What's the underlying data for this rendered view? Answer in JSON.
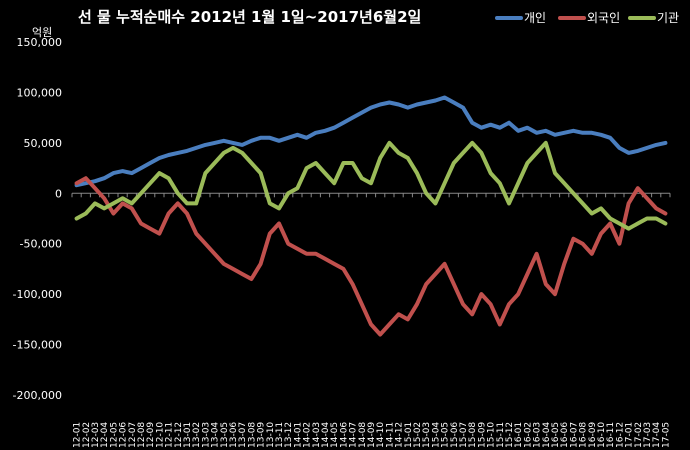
{
  "chart_data": {
    "type": "line",
    "title": "선 물  누적순매수  2012년 1월 1일~2017년6월2일",
    "unit_label": "억원",
    "ylim": [
      -200000,
      150000
    ],
    "y_ticks": [
      "150,000",
      "100,000",
      "50,000",
      "0",
      "-50,000",
      "-100,000",
      "-150,000",
      "-200,000"
    ],
    "y_tick_values": [
      150000,
      100000,
      50000,
      0,
      -50000,
      -100000,
      -150000,
      -200000
    ],
    "x_tick_labels": [
      "12-01",
      "12-02",
      "12-03",
      "12-04",
      "12-05",
      "12-06",
      "12-07",
      "12-08",
      "12-09",
      "12-10",
      "12-11",
      "12-12",
      "13-01",
      "13-02",
      "13-03",
      "13-04",
      "13-05",
      "13-06",
      "13-07",
      "13-08",
      "13-09",
      "13-10",
      "13-11",
      "13-12",
      "14-01",
      "14-02",
      "14-03",
      "14-04",
      "14-05",
      "14-06",
      "14-07",
      "14-08",
      "14-09",
      "14-10",
      "14-11",
      "14-12",
      "15-01",
      "15-02",
      "15-03",
      "15-04",
      "15-05",
      "15-06",
      "15-07",
      "15-08",
      "15-09",
      "15-10",
      "15-11",
      "15-12",
      "16-01",
      "16-02",
      "16-03",
      "16-04",
      "16-05",
      "16-06",
      "16-07",
      "16-08",
      "16-09",
      "16-10",
      "16-11",
      "16-12",
      "17-01",
      "17-02",
      "17-03",
      "17-04",
      "17-05"
    ],
    "legend_placement": "top-right",
    "grid": false,
    "series": [
      {
        "name": "개인",
        "color": "#4a7ebf",
        "values": [
          8000,
          10000,
          12000,
          15000,
          20000,
          22000,
          20000,
          25000,
          30000,
          35000,
          38000,
          40000,
          42000,
          45000,
          48000,
          50000,
          52000,
          50000,
          48000,
          52000,
          55000,
          55000,
          52000,
          55000,
          58000,
          55000,
          60000,
          62000,
          65000,
          70000,
          75000,
          80000,
          85000,
          88000,
          90000,
          88000,
          85000,
          88000,
          90000,
          92000,
          95000,
          90000,
          85000,
          70000,
          65000,
          68000,
          65000,
          70000,
          62000,
          65000,
          60000,
          62000,
          58000,
          60000,
          62000,
          60000,
          60000,
          58000,
          55000,
          45000,
          40000,
          42000,
          45000,
          48000,
          50000
        ]
      },
      {
        "name": "외국인",
        "color": "#c0504d",
        "values": [
          10000,
          15000,
          5000,
          -5000,
          -20000,
          -10000,
          -15000,
          -30000,
          -35000,
          -40000,
          -20000,
          -10000,
          -20000,
          -40000,
          -50000,
          -60000,
          -70000,
          -75000,
          -80000,
          -85000,
          -70000,
          -40000,
          -30000,
          -50000,
          -55000,
          -60000,
          -60000,
          -65000,
          -70000,
          -75000,
          -90000,
          -110000,
          -130000,
          -140000,
          -130000,
          -120000,
          -125000,
          -110000,
          -90000,
          -80000,
          -70000,
          -90000,
          -110000,
          -120000,
          -100000,
          -110000,
          -130000,
          -110000,
          -100000,
          -80000,
          -60000,
          -90000,
          -100000,
          -70000,
          -45000,
          -50000,
          -60000,
          -40000,
          -30000,
          -50000,
          -10000,
          5000,
          -5000,
          -15000,
          -20000
        ]
      },
      {
        "name": "기관",
        "color": "#9bbb59",
        "values": [
          -25000,
          -20000,
          -10000,
          -15000,
          -10000,
          -5000,
          -10000,
          0,
          10000,
          20000,
          15000,
          0,
          -10000,
          -10000,
          20000,
          30000,
          40000,
          45000,
          40000,
          30000,
          20000,
          -10000,
          -15000,
          0,
          5000,
          25000,
          30000,
          20000,
          10000,
          30000,
          30000,
          15000,
          10000,
          35000,
          50000,
          40000,
          35000,
          20000,
          0,
          -10000,
          10000,
          30000,
          40000,
          50000,
          40000,
          20000,
          10000,
          -10000,
          10000,
          30000,
          40000,
          50000,
          20000,
          10000,
          0,
          -10000,
          -20000,
          -15000,
          -25000,
          -30000,
          -35000,
          -30000,
          -25000,
          -25000,
          -30000
        ]
      }
    ]
  }
}
